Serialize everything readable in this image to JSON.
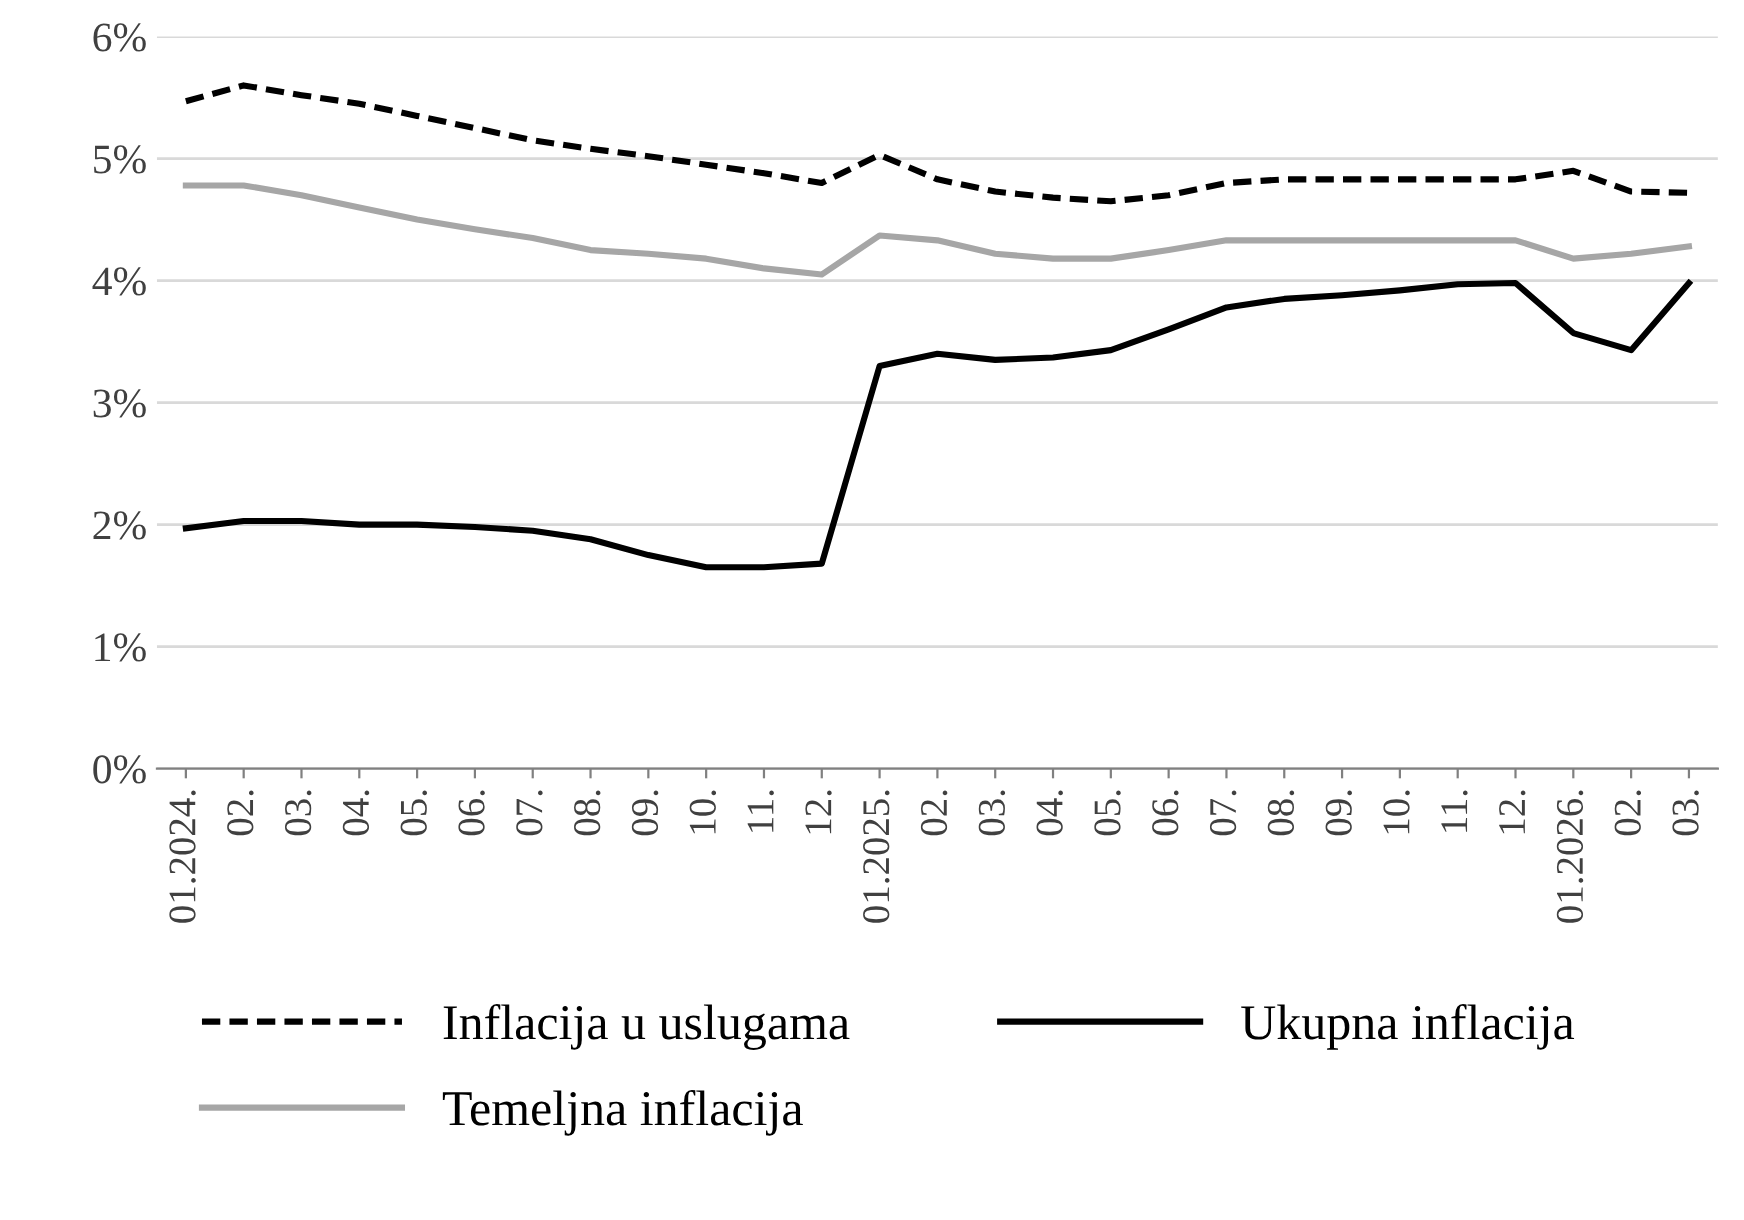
{
  "chart_data": {
    "type": "line",
    "categories": [
      "01.2024.",
      "02.",
      "03.",
      "04.",
      "05.",
      "06.",
      "07.",
      "08.",
      "09.",
      "10.",
      "11.",
      "12.",
      "01.2025.",
      "02.",
      "03.",
      "04.",
      "05.",
      "06.",
      "07.",
      "08.",
      "09.",
      "10.",
      "11.",
      "12.",
      "01.2026.",
      "02.",
      "03."
    ],
    "series": [
      {
        "name": "Inflacija u uslugama",
        "color": "#000000",
        "line_style": "dashed",
        "values": [
          5.47,
          5.6,
          5.52,
          5.45,
          5.35,
          5.25,
          5.15,
          5.08,
          5.02,
          4.95,
          4.88,
          4.8,
          5.03,
          4.83,
          4.73,
          4.68,
          4.65,
          4.7,
          4.8,
          4.83,
          4.83,
          4.83,
          4.83,
          4.83,
          4.9,
          4.73,
          4.72
        ]
      },
      {
        "name": "Ukupna inflacija",
        "color": "#000000",
        "line_style": "solid",
        "values": [
          1.97,
          2.03,
          2.03,
          2.0,
          2.0,
          1.98,
          1.95,
          1.88,
          1.75,
          1.65,
          1.65,
          1.68,
          3.3,
          3.4,
          3.35,
          3.37,
          3.43,
          3.6,
          3.78,
          3.85,
          3.88,
          3.92,
          3.97,
          3.98,
          3.57,
          3.43,
          3.98
        ]
      },
      {
        "name": "Temeljna inflacija",
        "color": "#a6a6a6",
        "line_style": "solid",
        "values": [
          4.78,
          4.78,
          4.7,
          4.6,
          4.5,
          4.42,
          4.35,
          4.25,
          4.22,
          4.18,
          4.1,
          4.05,
          4.37,
          4.33,
          4.22,
          4.18,
          4.18,
          4.25,
          4.33,
          4.33,
          4.33,
          4.33,
          4.33,
          4.33,
          4.18,
          4.22,
          4.28
        ]
      }
    ],
    "ylim": [
      0,
      6
    ],
    "yticks": [
      {
        "value": 0,
        "label": "0%"
      },
      {
        "value": 1,
        "label": "1%"
      },
      {
        "value": 2,
        "label": "2%"
      },
      {
        "value": 3,
        "label": "3%"
      },
      {
        "value": 4,
        "label": "4%"
      },
      {
        "value": 5,
        "label": "5%"
      },
      {
        "value": 6,
        "label": "6%"
      }
    ],
    "grid": "y",
    "legend": "bottom",
    "marker": "none"
  }
}
